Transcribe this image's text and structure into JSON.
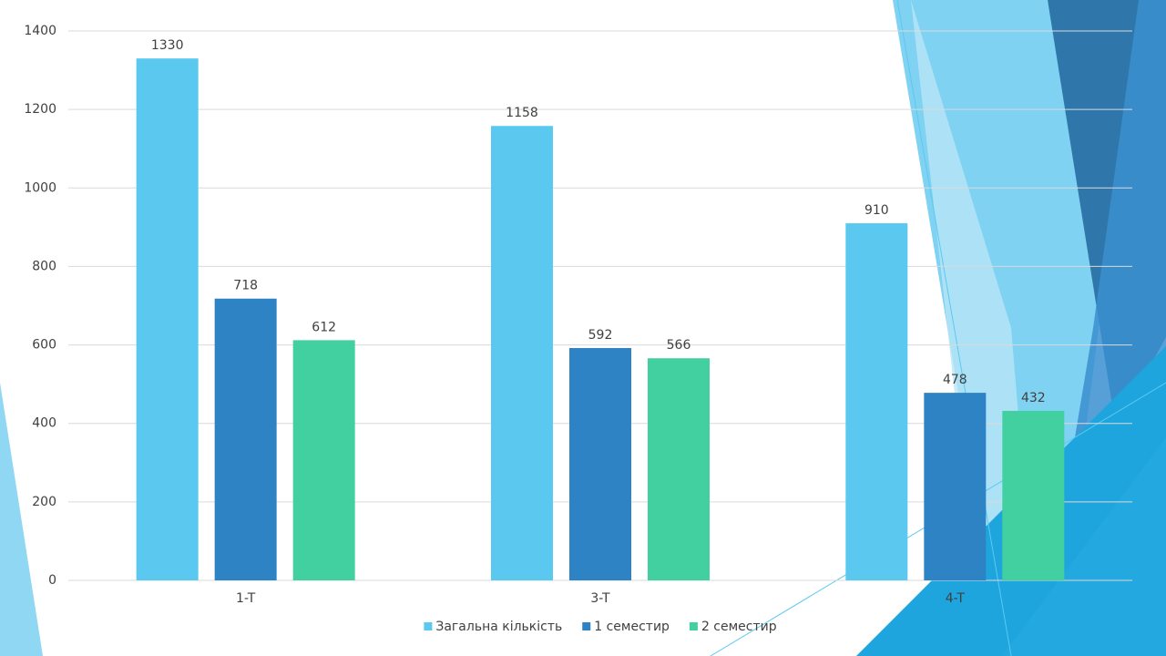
{
  "chart_data": {
    "type": "bar",
    "categories": [
      "1-T",
      "3-T",
      "4-T"
    ],
    "series": [
      {
        "name": "Загальна кількість",
        "color": "#5bc9ef",
        "values": [
          1330,
          1158,
          910
        ]
      },
      {
        "name": "1 семестир",
        "color": "#2e83c4",
        "values": [
          718,
          592,
          478
        ]
      },
      {
        "name": "2 семестир",
        "color": "#43d0a0",
        "values": [
          612,
          566,
          432
        ]
      }
    ],
    "ylim": [
      0,
      1400
    ],
    "yticks": [
      0,
      200,
      400,
      600,
      800,
      1000,
      1200,
      1400
    ],
    "grid": true,
    "legend": "bottom"
  }
}
